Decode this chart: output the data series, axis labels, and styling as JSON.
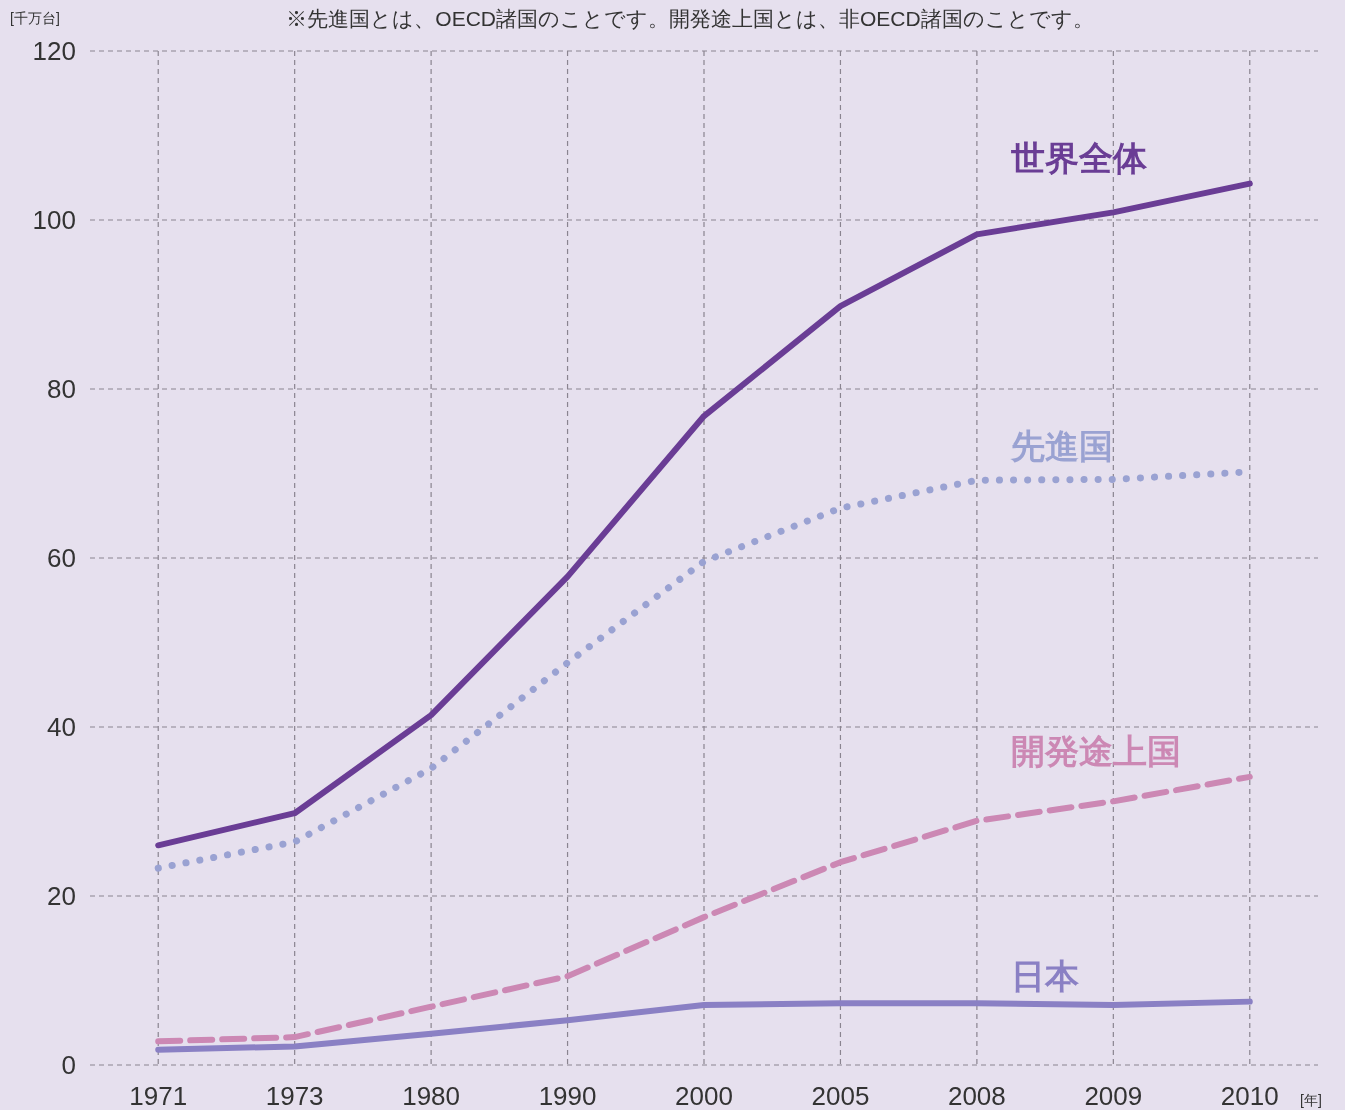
{
  "chart_data": {
    "type": "line",
    "ylabel": "[千万台]",
    "xlabel": "[年]",
    "annotations": [
      "※先進国とは、OECD諸国のことです。開発途上国とは、非OECD諸国のことです。"
    ],
    "categories": [
      "1971",
      "1973",
      "1980",
      "1990",
      "2000",
      "2005",
      "2008",
      "2009",
      "2010"
    ],
    "ylim": [
      0,
      120
    ],
    "yticks": [
      0,
      20,
      40,
      60,
      80,
      100,
      120
    ],
    "grid": true,
    "series": [
      {
        "name": "世界全体",
        "color": "#6a3d95",
        "line_style": "solid",
        "values": [
          26.0,
          29.8,
          41.4,
          57.8,
          76.8,
          89.8,
          98.3,
          100.9,
          104.3
        ]
      },
      {
        "name": "先進国",
        "color": "#9aa2d2",
        "line_style": "dotted",
        "values": [
          23.3,
          26.4,
          35.1,
          47.6,
          59.6,
          65.9,
          69.2,
          69.3,
          70.2
        ]
      },
      {
        "name": "開発途上国",
        "color": "#cc88b4",
        "line_style": "dashed",
        "values": [
          2.8,
          3.3,
          6.9,
          10.5,
          17.5,
          24.0,
          28.9,
          31.2,
          34.1
        ]
      },
      {
        "name": "日本",
        "color": "#8a80c4",
        "line_style": "solid",
        "values": [
          1.8,
          2.2,
          3.7,
          5.3,
          7.1,
          7.3,
          7.3,
          7.1,
          7.5
        ]
      }
    ]
  }
}
